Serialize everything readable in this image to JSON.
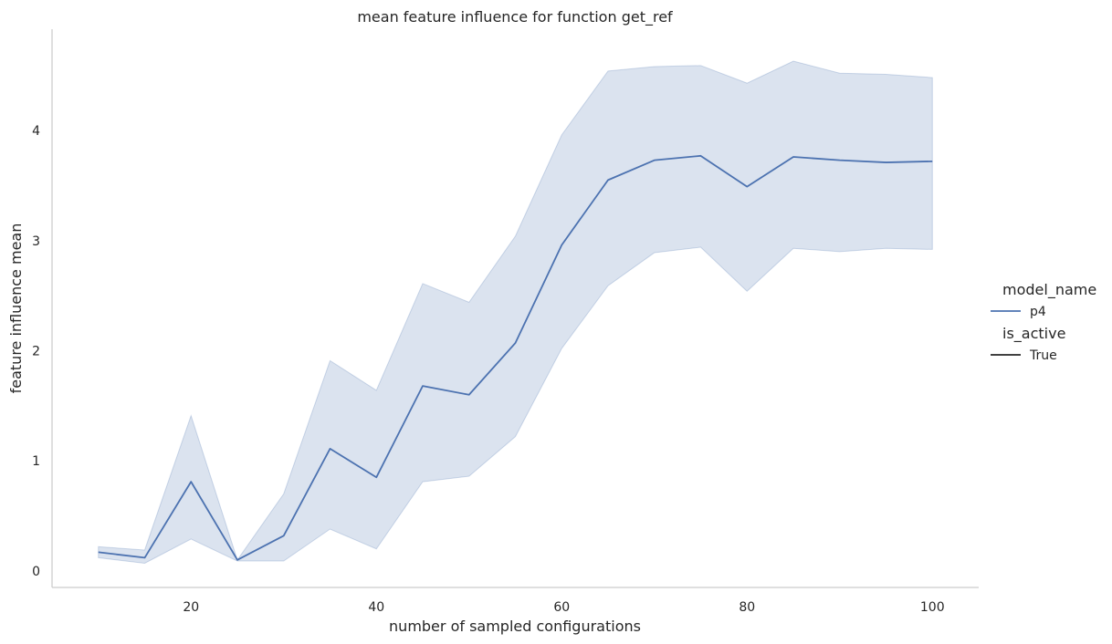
{
  "chart_data": {
    "type": "line",
    "title": "mean feature influence for function get_ref",
    "xlabel": "number of sampled configurations",
    "ylabel": "feature influence mean",
    "xlim": [
      5,
      105
    ],
    "ylim": [
      -0.15,
      4.92
    ],
    "xticks": [
      20,
      40,
      60,
      80,
      100
    ],
    "yticks": [
      0,
      1,
      2,
      3,
      4
    ],
    "grid": false,
    "legend": {
      "placement": "right",
      "hue_title": "model_name",
      "hue_entries": [
        {
          "label": "p4",
          "color": "#4c72b0"
        }
      ],
      "style_title": "is_active",
      "style_entries": [
        {
          "label": "True",
          "color": "#262626"
        }
      ]
    },
    "series": [
      {
        "name": "p4",
        "is_active": "True",
        "color": "#4c72b0",
        "band_color": "#4c72b0",
        "x": [
          10,
          15,
          20,
          25,
          30,
          35,
          40,
          45,
          50,
          55,
          60,
          65,
          70,
          75,
          80,
          85,
          90,
          95,
          100
        ],
        "values": [
          0.17,
          0.12,
          0.81,
          0.1,
          0.32,
          1.11,
          0.85,
          1.68,
          1.6,
          2.07,
          2.96,
          3.55,
          3.73,
          3.77,
          3.49,
          3.76,
          3.73,
          3.71,
          3.72
        ],
        "ci_low": [
          0.12,
          0.07,
          0.29,
          0.09,
          0.09,
          0.38,
          0.2,
          0.81,
          0.86,
          1.22,
          2.02,
          2.59,
          2.89,
          2.94,
          2.54,
          2.93,
          2.9,
          2.93,
          2.92
        ],
        "ci_high": [
          0.22,
          0.19,
          1.41,
          0.1,
          0.7,
          1.91,
          1.64,
          2.61,
          2.44,
          3.04,
          3.96,
          4.54,
          4.58,
          4.59,
          4.43,
          4.63,
          4.52,
          4.51,
          4.48
        ]
      }
    ]
  }
}
